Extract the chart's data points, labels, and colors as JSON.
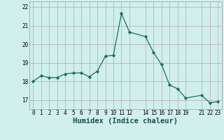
{
  "x": [
    0,
    1,
    2,
    3,
    4,
    5,
    6,
    7,
    8,
    9,
    10,
    11,
    12,
    14,
    15,
    16,
    17,
    18,
    19,
    21,
    22,
    23
  ],
  "y": [
    18.0,
    18.3,
    18.2,
    18.2,
    18.4,
    18.45,
    18.45,
    18.25,
    18.55,
    19.35,
    19.4,
    21.65,
    20.65,
    20.4,
    19.55,
    18.9,
    17.8,
    17.6,
    17.1,
    17.25,
    16.85,
    16.9
  ],
  "line_color": "#1a7060",
  "marker": "D",
  "marker_size": 2.2,
  "bg_color": "#d0efed",
  "grid_color_major": "#b8a8a8",
  "grid_color_minor": "#c8b8b8",
  "xlabel": "Humidex (Indice chaleur)",
  "ylim": [
    16.5,
    22.3
  ],
  "xlim": [
    -0.5,
    23.5
  ],
  "yticks": [
    17,
    18,
    19,
    20,
    21,
    22
  ],
  "xticks": [
    0,
    1,
    2,
    3,
    4,
    5,
    6,
    7,
    8,
    9,
    10,
    11,
    12,
    14,
    15,
    16,
    17,
    18,
    19,
    21,
    22,
    23
  ],
  "tick_label_fontsize": 5.5,
  "xlabel_fontsize": 7.5
}
